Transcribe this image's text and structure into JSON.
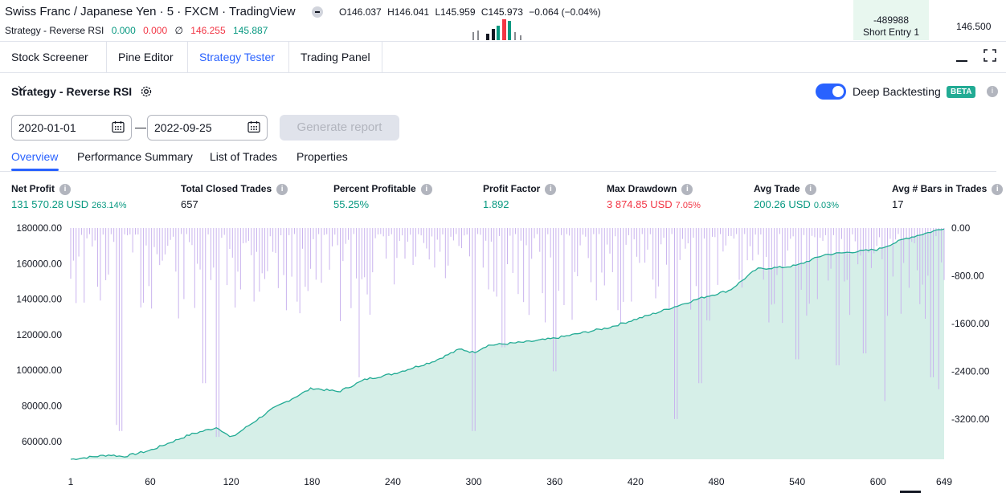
{
  "header": {
    "title": "Swiss Franc / Japanese Yen · 5 · FXCM · TradingView",
    "ohlc": {
      "o": "O146.037",
      "h": "H146.041",
      "l": "L145.959",
      "c": "C145.973",
      "change": "−0.064 (−0.04%)"
    },
    "strategy_name": "Strategy - Reverse RSI",
    "values": [
      "0.000",
      "0.000",
      "∅",
      "146.255",
      "145.887"
    ],
    "short_entry_value": "-489988",
    "short_entry_label": "Short Entry 1",
    "price_axis_value": "146.500"
  },
  "tabs": [
    "Stock Screener",
    "Pine Editor",
    "Strategy Tester",
    "Trading Panel"
  ],
  "active_tab": "Strategy Tester",
  "strategy": {
    "title": "Strategy - Reverse RSI",
    "deep_backtesting_label": "Deep Backtesting",
    "beta_badge": "BETA",
    "deep_backtesting_on": true,
    "date_from": "2020-01-01",
    "date_to": "2022-09-25",
    "generate_button": "Generate report"
  },
  "subtabs": [
    "Overview",
    "Performance Summary",
    "List of Trades",
    "Properties"
  ],
  "metrics": [
    {
      "label": "Net Profit",
      "value": "131 570.28 USD",
      "pct": "263.14%",
      "color": "#089981"
    },
    {
      "label": "Total Closed Trades",
      "value": "657",
      "pct": "",
      "color": "#131722"
    },
    {
      "label": "Percent Profitable",
      "value": "55.25%",
      "pct": "",
      "color": "#089981"
    },
    {
      "label": "Profit Factor",
      "value": "1.892",
      "pct": "",
      "color": "#089981"
    },
    {
      "label": "Max Drawdown",
      "value": "3 874.85 USD",
      "pct": "7.05%",
      "color": "#f23645"
    },
    {
      "label": "Avg Trade",
      "value": "200.26 USD",
      "pct": "0.03%",
      "color": "#089981"
    },
    {
      "label": "Avg # Bars in Trades",
      "value": "17",
      "pct": "",
      "color": "#131722"
    }
  ],
  "chart_data": {
    "type": "area",
    "y_left_ticks": [
      "180000.00",
      "160000.00",
      "140000.00",
      "120000.00",
      "100000.00",
      "80000.00",
      "60000.00"
    ],
    "y_right_ticks": [
      "0.00",
      "-800.00",
      "-1600.00",
      "-2400.00",
      "-3200.00"
    ],
    "x_ticks": [
      "1",
      "60",
      "120",
      "180",
      "240",
      "300",
      "360",
      "420",
      "480",
      "540",
      "600",
      "649"
    ],
    "ylim_left": [
      50000,
      180000
    ],
    "ylim_right": [
      -3874.85,
      0
    ],
    "equity": {
      "x": [
        1,
        30,
        40,
        60,
        80,
        90,
        110,
        120,
        150,
        180,
        200,
        220,
        240,
        270,
        290,
        300,
        310,
        340,
        360,
        400,
        430,
        450,
        470,
        490,
        510,
        530,
        540,
        560,
        600,
        620,
        640,
        649
      ],
      "y": [
        50000,
        52500,
        51500,
        55000,
        61000,
        64000,
        68000,
        62000,
        78000,
        90000,
        88000,
        95000,
        98000,
        105000,
        112000,
        110000,
        114000,
        116000,
        118000,
        124000,
        131000,
        136000,
        141000,
        145000,
        157000,
        158000,
        159000,
        165000,
        168000,
        174000,
        178000,
        180000
      ]
    },
    "drawdown_note": "per-trade drawdown histogram, values in USD (negative)"
  },
  "colors": {
    "accent": "#2962ff",
    "positive": "#089981",
    "negative": "#f23645",
    "equity_line": "#22ab94",
    "equity_fill": "#d6efe8",
    "drawdown_bar": "#c9b3ee"
  }
}
